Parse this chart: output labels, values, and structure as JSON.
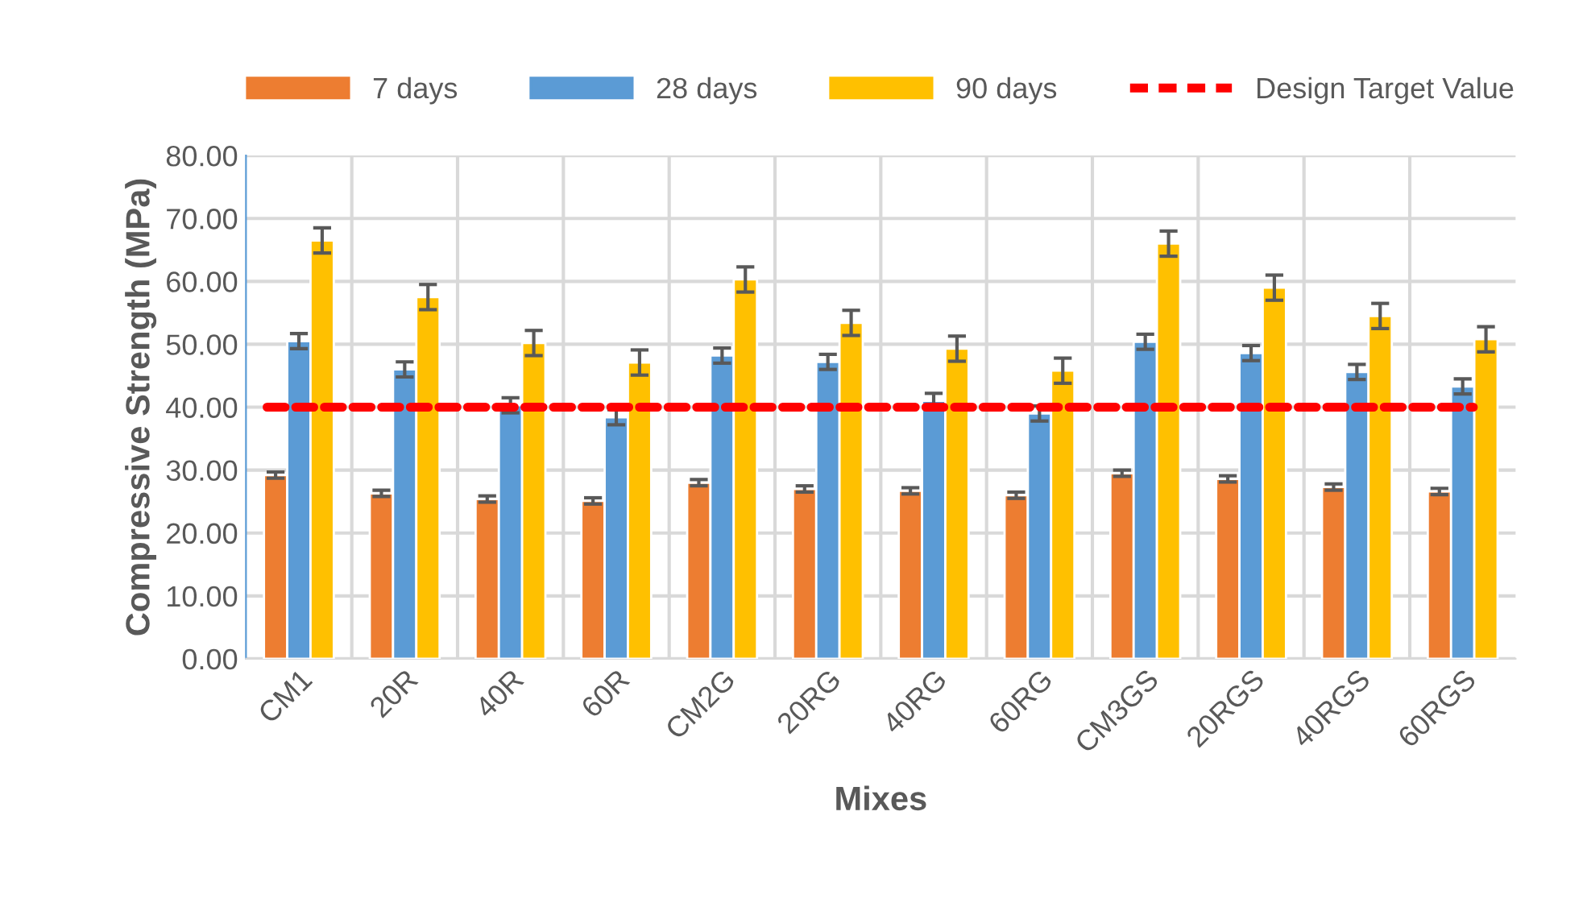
{
  "chart_data": {
    "type": "bar",
    "xlabel": "Mixes",
    "ylabel": "Compressive Strength (MPa)",
    "categories": [
      "CM1",
      "20R",
      "40R",
      "60R",
      "CM2G",
      "20RG",
      "40RG",
      "60RG",
      "CM3GS",
      "20RGS",
      "40RGS",
      "60RGS"
    ],
    "series": [
      {
        "name": "7 days",
        "color": "#ed7d31",
        "values": [
          29.2,
          26.3,
          25.4,
          25.1,
          28.0,
          27.0,
          26.7,
          26.0,
          29.5,
          28.6,
          27.3,
          26.6
        ],
        "errors": [
          0.5,
          0.5,
          0.5,
          0.5,
          0.5,
          0.5,
          0.5,
          0.5,
          0.5,
          0.5,
          0.5,
          0.5
        ]
      },
      {
        "name": "28 days",
        "color": "#5b9bd5",
        "values": [
          50.5,
          46.0,
          40.3,
          38.4,
          48.2,
          47.2,
          41.0,
          39.0,
          50.4,
          48.6,
          45.6,
          43.3
        ],
        "errors": [
          1.2,
          1.2,
          1.2,
          1.2,
          1.2,
          1.2,
          1.2,
          1.2,
          1.2,
          1.2,
          1.2,
          1.2
        ]
      },
      {
        "name": "90 days",
        "color": "#ffc000",
        "values": [
          66.5,
          57.5,
          50.2,
          47.1,
          60.3,
          53.4,
          49.3,
          45.8,
          66.0,
          59.0,
          54.5,
          50.8
        ],
        "errors": [
          2,
          2,
          2,
          2,
          2,
          2,
          2,
          2,
          2,
          2,
          2,
          2
        ]
      }
    ],
    "ref_lines": [
      {
        "axis": "y",
        "value": 40,
        "label": "Design Target Value",
        "color": "#ff0000",
        "line_style": "dashed"
      }
    ],
    "ylim": [
      0,
      80
    ],
    "yticks": [
      {
        "value": 0,
        "label": "0.00"
      },
      {
        "value": 10,
        "label": "10.00"
      },
      {
        "value": 20,
        "label": "20.00"
      },
      {
        "value": 30,
        "label": "30.00"
      },
      {
        "value": 40,
        "label": "40.00"
      },
      {
        "value": 50,
        "label": "50.00"
      },
      {
        "value": 60,
        "label": "60.00"
      },
      {
        "value": 70,
        "label": "70.00"
      },
      {
        "value": 80,
        "label": "80.00"
      }
    ],
    "grid": true,
    "legend": "top"
  }
}
